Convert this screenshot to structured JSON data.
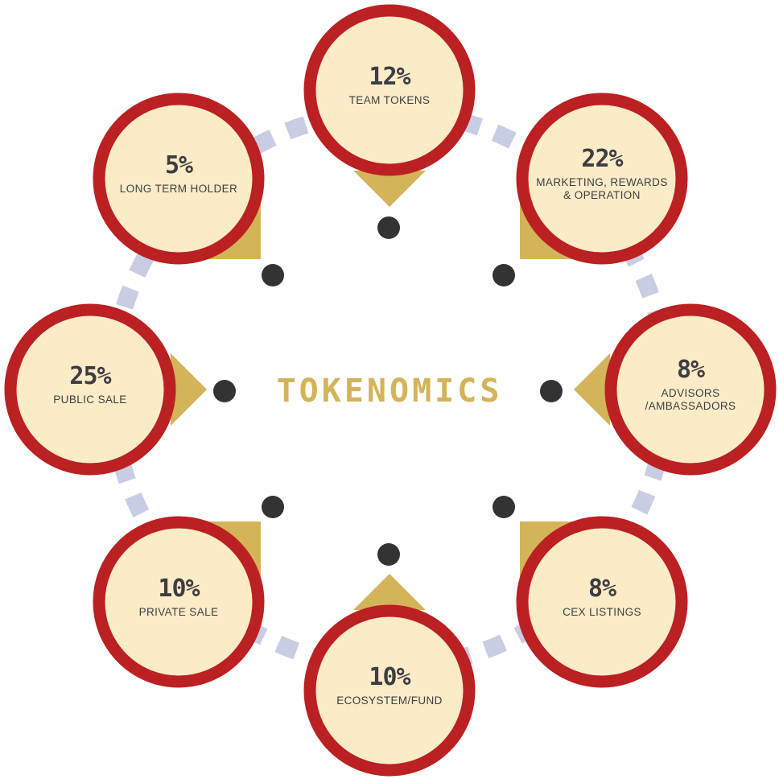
{
  "title": "TOKENOMICS",
  "colors": {
    "ring": "#bb2022",
    "fill": "#fcebc7",
    "pointer": "#d4b459",
    "dot": "#333333",
    "connector": "#c9cde3",
    "text": "#3d3d42"
  },
  "chart_data": {
    "type": "pie",
    "title": "TOKENOMICS",
    "segments": [
      {
        "label": "TEAM TOKENS",
        "value": 12,
        "display": "12%"
      },
      {
        "label": "MARKETING, REWARDS & OPERATION",
        "value": 22,
        "display": "22%"
      },
      {
        "label": "ADVISORS /AMBASSADORS",
        "value": 8,
        "display": "8%"
      },
      {
        "label": "CEX LISTINGS",
        "value": 8,
        "display": "8%"
      },
      {
        "label": "ECOSYSTEM/FUND",
        "value": 10,
        "display": "10%"
      },
      {
        "label": "PRIVATE SALE",
        "value": 10,
        "display": "10%"
      },
      {
        "label": "PUBLIC SALE",
        "value": 25,
        "display": "25%"
      },
      {
        "label": "LONG TERM HOLDER",
        "value": 5,
        "display": "5%"
      }
    ]
  }
}
